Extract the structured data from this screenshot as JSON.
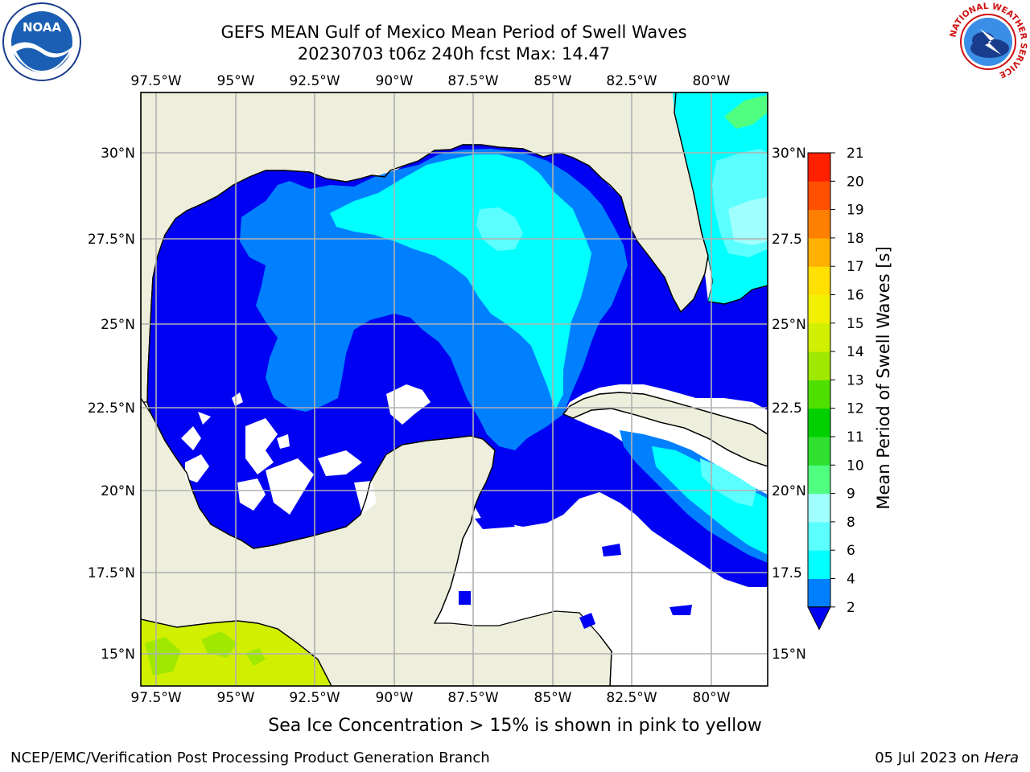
{
  "title": {
    "line1": "GEFS MEAN Gulf of Mexico Mean Period of Swell Waves",
    "line2": "20230703 t06z 240h fcst   Max: 14.47"
  },
  "map": {
    "lon_labels": [
      "97.5°W",
      "95°W",
      "92.5°W",
      "90°W",
      "87.5°W",
      "85°W",
      "82.5°W",
      "80°W"
    ],
    "lat_labels_left": [
      "30°N",
      "27.5°N",
      "25°N",
      "22.5°N",
      "20°N",
      "17.5°N",
      "15°N"
    ],
    "lat_labels_right": [
      "30°N",
      "27.5",
      "25°N",
      "22.5",
      "20°N",
      "17.5",
      "15°N"
    ],
    "land_color": "#eeeedc",
    "grid_color": "#b0b0b0"
  },
  "colorbar": {
    "label": "Mean Period of Swell Waves [s]",
    "ticks": [
      "2",
      "4",
      "6",
      "8",
      "9",
      "10",
      "11",
      "12",
      "13",
      "14",
      "15",
      "16",
      "17",
      "18",
      "19",
      "20",
      "21"
    ],
    "colors": [
      "#0000f2",
      "#0080ff",
      "#00ffff",
      "#5cffff",
      "#a0ffff",
      "#50ff80",
      "#30e030",
      "#00d000",
      "#50e000",
      "#a0e800",
      "#d0f000",
      "#f0f000",
      "#ffe000",
      "#ffb000",
      "#ff8000",
      "#ff5000",
      "#ff2000",
      "#ff0000"
    ]
  },
  "logos": {
    "noaa_text": "NOAA",
    "nws_ring_text": "NATIONAL WEATHER SERVICE"
  },
  "footer": {
    "note": "Sea Ice Concentration > 15% is shown in pink to yellow",
    "org": "NCEP/EMC/Verification Post Processing Product Generation Branch",
    "date_prefix": "05 Jul 2023 on ",
    "machine": "Hera"
  }
}
